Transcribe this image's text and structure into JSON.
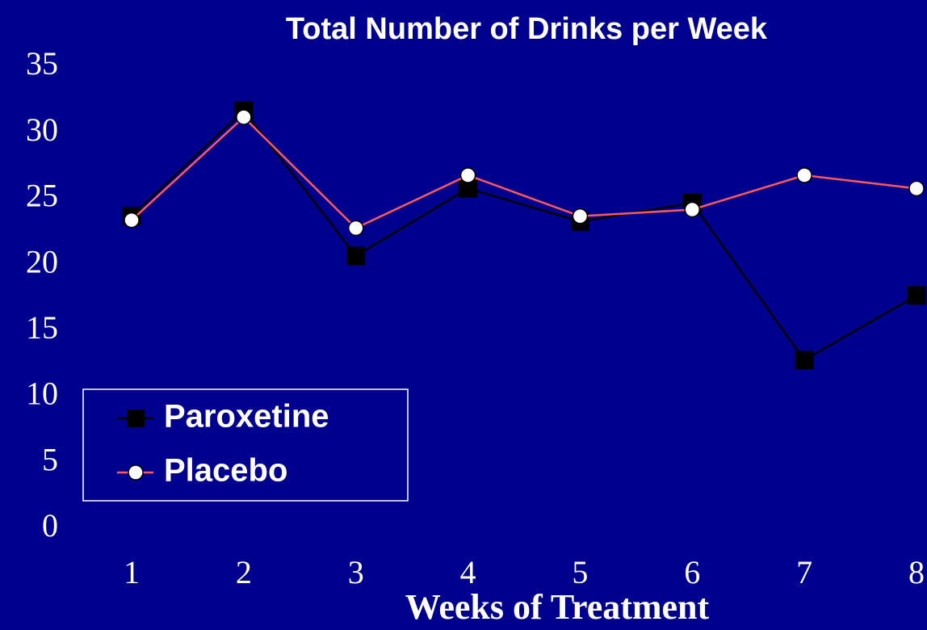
{
  "chart_data": {
    "type": "line",
    "title": "Total Number of Drinks per Week",
    "x_label": "Weeks of Treatment",
    "x": [
      1,
      2,
      3,
      4,
      5,
      6,
      7,
      8
    ],
    "xlim": [
      1,
      8
    ],
    "xticks": [
      1,
      2,
      3,
      4,
      5,
      6,
      7,
      8
    ],
    "ylim": [
      0,
      35
    ],
    "yticks": [
      0,
      5,
      10,
      15,
      20,
      25,
      30,
      35
    ],
    "grid": false,
    "legend": "lower left",
    "series": [
      {
        "name": "Paroxetine",
        "color": "#000000",
        "marker": "square",
        "values": [
          23.7,
          31.7,
          20.7,
          25.8,
          23.3,
          24.7,
          12.8,
          17.7
        ]
      },
      {
        "name": "Placebo",
        "color": "#ff5a5a",
        "marker": "circle",
        "values": [
          23.4,
          31.2,
          22.8,
          26.8,
          23.7,
          24.2,
          26.8,
          25.8
        ]
      }
    ]
  }
}
